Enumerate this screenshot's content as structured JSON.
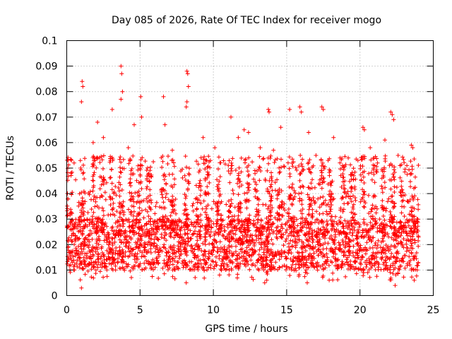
{
  "chart_data": {
    "type": "scatter",
    "title": "Day 085 of 2026, Rate Of TEC Index for receiver mogo",
    "xlabel": "GPS time / hours",
    "ylabel": "ROTI / TECUs",
    "xlim": [
      0,
      25
    ],
    "ylim": [
      0,
      0.1
    ],
    "x_ticks": [
      0,
      5,
      10,
      15,
      20,
      25
    ],
    "x_tick_labels": [
      "0",
      "5",
      "10",
      "15",
      "20",
      "25"
    ],
    "y_ticks": [
      0,
      0.01,
      0.02,
      0.03,
      0.04,
      0.05,
      0.06,
      0.07,
      0.08,
      0.09,
      0.1
    ],
    "y_tick_labels": [
      "0",
      "0.01",
      "0.02",
      "0.03",
      "0.04",
      "0.05",
      "0.06",
      "0.07",
      "0.08",
      "0.09",
      "0.1"
    ],
    "grid": true,
    "marker": "+",
    "color": "#ff0000",
    "series": [
      {
        "name": "ROTI",
        "summary": "dense point cloud from 0 to 24 h, typical range 0.005–0.04 TECU/min",
        "points": [
          [
            1.05,
            0.084
          ],
          [
            1.1,
            0.082
          ],
          [
            1.0,
            0.076
          ],
          [
            3.7,
            0.09
          ],
          [
            3.75,
            0.087
          ],
          [
            3.8,
            0.08
          ],
          [
            3.7,
            0.077
          ],
          [
            3.1,
            0.073
          ],
          [
            5.05,
            0.078
          ],
          [
            5.1,
            0.07
          ],
          [
            6.6,
            0.078
          ],
          [
            8.2,
            0.088
          ],
          [
            8.25,
            0.087
          ],
          [
            8.3,
            0.082
          ],
          [
            8.2,
            0.076
          ],
          [
            8.15,
            0.074
          ],
          [
            11.2,
            0.07
          ],
          [
            13.75,
            0.073
          ],
          [
            13.8,
            0.072
          ],
          [
            15.2,
            0.073
          ],
          [
            15.9,
            0.074
          ],
          [
            16.0,
            0.072
          ],
          [
            17.4,
            0.074
          ],
          [
            17.5,
            0.073
          ],
          [
            20.2,
            0.066
          ],
          [
            20.3,
            0.065
          ],
          [
            22.1,
            0.072
          ],
          [
            22.2,
            0.071
          ],
          [
            22.3,
            0.069
          ],
          [
            2.1,
            0.068
          ],
          [
            4.6,
            0.067
          ],
          [
            6.7,
            0.067
          ],
          [
            12.1,
            0.065
          ],
          [
            12.4,
            0.064
          ],
          [
            14.6,
            0.066
          ],
          [
            16.5,
            0.064
          ],
          [
            18.2,
            0.062
          ],
          [
            23.5,
            0.059
          ],
          [
            23.6,
            0.058
          ],
          [
            0.5,
            0.052
          ],
          [
            0.3,
            0.048
          ],
          [
            9.3,
            0.062
          ],
          [
            10.1,
            0.058
          ],
          [
            19.2,
            0.054
          ],
          [
            21.7,
            0.061
          ],
          [
            1.8,
            0.06
          ],
          [
            2.5,
            0.062
          ],
          [
            4.2,
            0.058
          ],
          [
            7.2,
            0.057
          ],
          [
            9.8,
            0.053
          ],
          [
            11.7,
            0.062
          ],
          [
            13.2,
            0.058
          ],
          [
            14.1,
            0.057
          ],
          [
            17.0,
            0.055
          ],
          [
            18.8,
            0.051
          ],
          [
            20.7,
            0.058
          ],
          [
            21.2,
            0.052
          ],
          [
            22.6,
            0.055
          ],
          [
            23.2,
            0.051
          ],
          [
            1.0,
            0.003
          ],
          [
            8.15,
            0.005
          ],
          [
            13.5,
            0.005
          ],
          [
            16.4,
            0.005
          ],
          [
            17.9,
            0.006
          ],
          [
            22.4,
            0.004
          ],
          [
            23.7,
            0.006
          ]
        ],
        "typical_band": {
          "low": 0.006,
          "high": 0.038,
          "core_low": 0.01,
          "core_high": 0.03
        }
      }
    ]
  }
}
